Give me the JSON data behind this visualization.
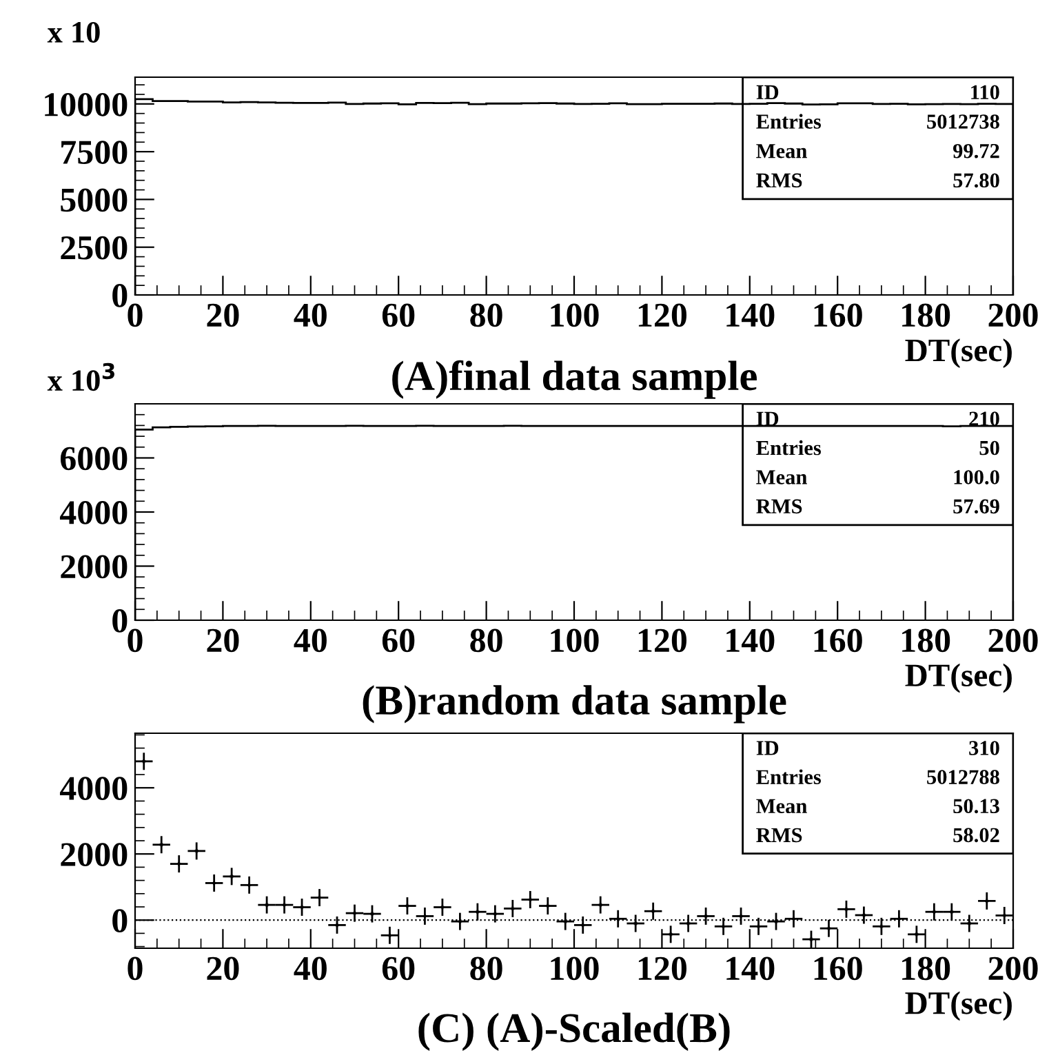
{
  "chart_data": [
    {
      "type": "histogram",
      "title": "(A)final data sample",
      "xlabel": "DT(sec)",
      "ylabel": "x 10",
      "color": "#000000",
      "bins": [
        0,
        4,
        8,
        12,
        16,
        20,
        24,
        28,
        32,
        36,
        40,
        44,
        48,
        52,
        56,
        60,
        64,
        68,
        72,
        76,
        80,
        84,
        88,
        92,
        96,
        100,
        104,
        108,
        112,
        116,
        120,
        124,
        128,
        132,
        136,
        140,
        144,
        148,
        152,
        156,
        160,
        164,
        168,
        172,
        176,
        180,
        184,
        188,
        192,
        196,
        200
      ],
      "values": [
        10250,
        10150,
        10150,
        10120,
        10120,
        10080,
        10100,
        10080,
        10060,
        10050,
        10050,
        10070,
        10000,
        10020,
        10030,
        9980,
        10050,
        10040,
        10060,
        9990,
        10020,
        10020,
        10030,
        10040,
        10020,
        10000,
        10010,
        10030,
        9990,
        9990,
        10010,
        10010,
        10010,
        10020,
        10000,
        10010,
        10040,
        10020,
        9970,
        9980,
        10030,
        10030,
        10000,
        10010,
        9980,
        9990,
        10000,
        9990,
        10010,
        10000
      ],
      "xlim": [
        0,
        200
      ],
      "xticks": [
        0,
        20,
        40,
        60,
        80,
        100,
        120,
        140,
        160,
        180,
        200
      ],
      "ylim": [
        0,
        11400
      ],
      "yticks": [
        0,
        2500,
        5000,
        7500,
        10000
      ],
      "grid": false,
      "annotations": [
        "ID",
        "110",
        "Entries",
        "5012738",
        "Mean",
        "99.72",
        "RMS",
        "57.80"
      ]
    },
    {
      "type": "histogram",
      "title": "(B)random data sample",
      "xlabel": "DT(sec)",
      "ylabel": "x 10$^{3}$",
      "color": "#000000",
      "bins": [
        0,
        4,
        8,
        12,
        16,
        20,
        24,
        28,
        32,
        36,
        40,
        44,
        48,
        52,
        56,
        60,
        64,
        68,
        72,
        76,
        80,
        84,
        88,
        92,
        96,
        100,
        104,
        108,
        112,
        116,
        120,
        124,
        128,
        132,
        136,
        140,
        144,
        148,
        152,
        156,
        160,
        164,
        168,
        172,
        176,
        180,
        184,
        188,
        192,
        196,
        200
      ],
      "values": [
        7050,
        7130,
        7150,
        7160,
        7170,
        7180,
        7180,
        7190,
        7180,
        7180,
        7180,
        7180,
        7190,
        7180,
        7180,
        7180,
        7190,
        7180,
        7180,
        7180,
        7180,
        7190,
        7180,
        7180,
        7180,
        7180,
        7180,
        7180,
        7180,
        7180,
        7180,
        7180,
        7180,
        7180,
        7180,
        7180,
        7180,
        7180,
        7180,
        7180,
        7180,
        7180,
        7180,
        7180,
        7180,
        7180,
        7170,
        7180,
        7180,
        7180
      ],
      "xlim": [
        0,
        200
      ],
      "xticks": [
        0,
        20,
        40,
        60,
        80,
        100,
        120,
        140,
        160,
        180,
        200
      ],
      "ylim": [
        0,
        8000
      ],
      "yticks": [
        0,
        2000,
        4000,
        6000
      ],
      "grid": false,
      "annotations": [
        "ID",
        "210",
        "Entries",
        "50",
        "Mean",
        "100.0",
        "RMS",
        "57.69"
      ]
    },
    {
      "type": "scatter",
      "title": "(C) (A)-Scaled(B)",
      "xlabel": "DT(sec)",
      "color": "#000000",
      "marker": "cross",
      "x": [
        2,
        6,
        10,
        14,
        18,
        22,
        26,
        30,
        34,
        38,
        42,
        46,
        50,
        54,
        58,
        62,
        66,
        70,
        74,
        78,
        82,
        86,
        90,
        94,
        98,
        102,
        106,
        110,
        114,
        118,
        122,
        126,
        130,
        134,
        138,
        142,
        146,
        150,
        154,
        158,
        162,
        166,
        170,
        174,
        178,
        182,
        186,
        190,
        194,
        198
      ],
      "values": [
        4800,
        2280,
        1700,
        2090,
        1120,
        1320,
        1060,
        460,
        460,
        390,
        680,
        -150,
        210,
        190,
        -460,
        430,
        120,
        390,
        -40,
        250,
        190,
        350,
        620,
        430,
        -40,
        -150,
        460,
        40,
        -100,
        270,
        -430,
        -100,
        120,
        -190,
        120,
        -190,
        -40,
        40,
        -580,
        -250,
        330,
        150,
        -190,
        40,
        -430,
        250,
        250,
        -100,
        580,
        140
      ],
      "xerrors": [
        2,
        2,
        2,
        2,
        2,
        2,
        2,
        2,
        2,
        2,
        2,
        2,
        2,
        2,
        2,
        2,
        2,
        2,
        2,
        2,
        2,
        2,
        2,
        2,
        2,
        2,
        2,
        2,
        2,
        2,
        2,
        2,
        2,
        2,
        2,
        2,
        2,
        2,
        2,
        2,
        2,
        2,
        2,
        2,
        2,
        2,
        2,
        2,
        2,
        2
      ],
      "errors": [
        260,
        260,
        260,
        260,
        260,
        260,
        260,
        260,
        260,
        260,
        260,
        260,
        260,
        260,
        260,
        260,
        260,
        260,
        260,
        260,
        260,
        260,
        260,
        260,
        260,
        260,
        260,
        260,
        260,
        260,
        260,
        260,
        260,
        260,
        260,
        260,
        260,
        260,
        260,
        260,
        260,
        260,
        260,
        260,
        260,
        260,
        260,
        260,
        260,
        260
      ],
      "xlim": [
        0,
        200
      ],
      "xticks": [
        0,
        20,
        40,
        60,
        80,
        100,
        120,
        140,
        160,
        180,
        200
      ],
      "ylim": [
        -850,
        5650
      ],
      "yticks": [
        0,
        2000,
        4000
      ],
      "grid": false,
      "ref_lines": [
        {
          "axis": "y",
          "value": 0,
          "line_style": "dotted",
          "color": "#000000"
        }
      ],
      "annotations": [
        "ID",
        "310",
        "Entries",
        "5012788",
        "Mean",
        "50.13",
        "RMS",
        "58.02"
      ]
    }
  ]
}
